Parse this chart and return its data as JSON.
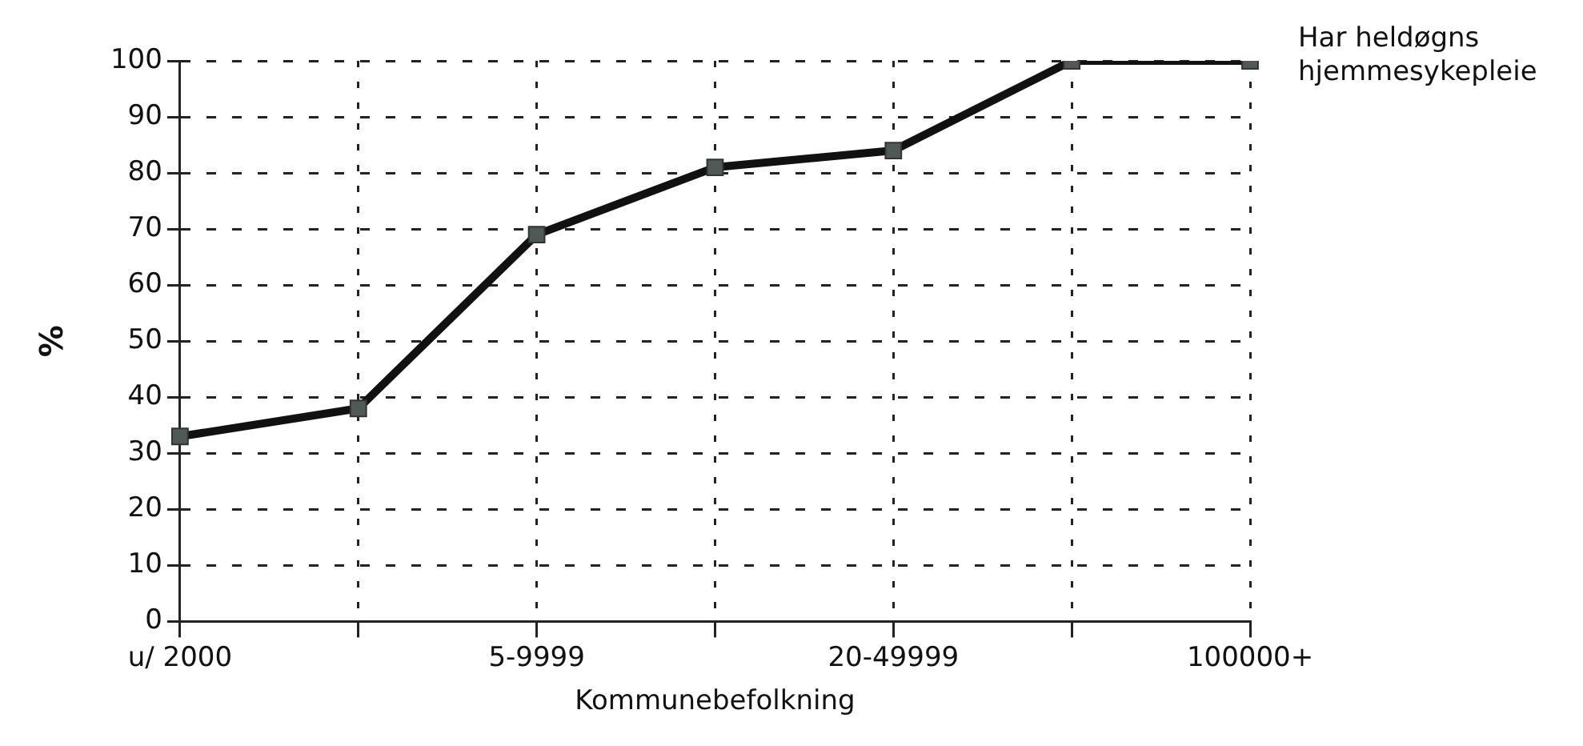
{
  "chart_data": {
    "type": "line",
    "xlabel": "Kommunebefolkning",
    "ylabel": "%",
    "categories": [
      "u/ 2000",
      null,
      "5-9999",
      null,
      "20-49999",
      null,
      "100000+"
    ],
    "series": [
      {
        "name": "Har heldøgns hjemmesykepleie",
        "color": "#4f5a55",
        "values": [
          33,
          38,
          69,
          81,
          84,
          100,
          100
        ]
      }
    ],
    "ylim": [
      0,
      100
    ],
    "yticks": [
      0,
      10,
      20,
      30,
      40,
      50,
      60,
      70,
      80,
      90,
      100
    ],
    "grid": true,
    "legend": "top right",
    "marker": "square",
    "line_style": "solid"
  }
}
